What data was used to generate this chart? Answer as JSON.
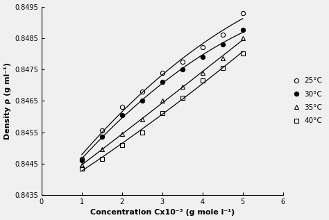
{
  "x": [
    1.0,
    1.5,
    2.0,
    2.5,
    3.0,
    3.5,
    4.0,
    4.5,
    5.0
  ],
  "series": {
    "25C": {
      "label": "25°C",
      "marker": "o",
      "fillstyle": "none",
      "color": "black",
      "y": [
        0.84465,
        0.84555,
        0.8463,
        0.8468,
        0.8474,
        0.84775,
        0.8482,
        0.8486,
        0.8493
      ]
    },
    "30C": {
      "label": "30°C",
      "marker": "o",
      "fillstyle": "full",
      "color": "black",
      "y": [
        0.8446,
        0.84535,
        0.84605,
        0.8465,
        0.8471,
        0.8475,
        0.8479,
        0.8483,
        0.84875
      ]
    },
    "35C": {
      "label": "35°C",
      "marker": "^",
      "fillstyle": "none",
      "color": "black",
      "y": [
        0.84445,
        0.84495,
        0.84545,
        0.8459,
        0.8465,
        0.84695,
        0.8474,
        0.84785,
        0.8485
      ]
    },
    "40C": {
      "label": "40°C",
      "marker": "s",
      "fillstyle": "none",
      "color": "black",
      "y": [
        0.84435,
        0.84465,
        0.8451,
        0.8455,
        0.8461,
        0.8466,
        0.84715,
        0.84755,
        0.848
      ]
    }
  },
  "xlim": [
    0,
    6
  ],
  "ylim": [
    0.8435,
    0.8495
  ],
  "xticks": [
    0,
    1,
    2,
    3,
    4,
    5,
    6
  ],
  "yticks": [
    0.8435,
    0.8445,
    0.8455,
    0.8465,
    0.8475,
    0.8485,
    0.8495
  ],
  "xlabel": "Concentration Cx10⁻³ (g mole l⁻¹)",
  "ylabel": "Density ρ (g ml⁻¹)",
  "background_color": "#f0f0f0",
  "poly_degree": 2
}
